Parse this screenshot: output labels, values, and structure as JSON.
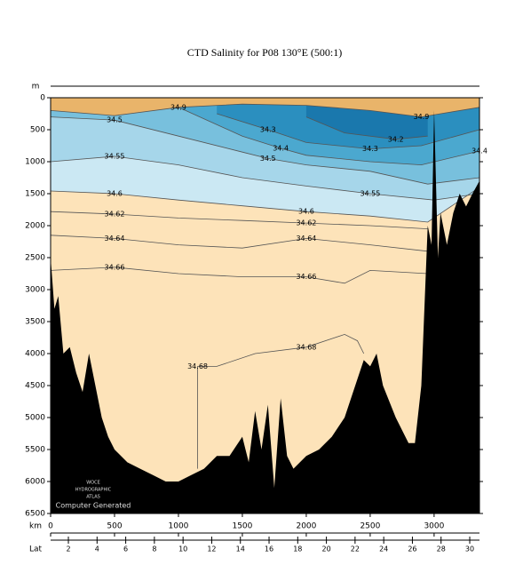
{
  "chart_data": {
    "type": "contour",
    "title": "CTD Salinity for P08 130°E (500:1)",
    "x_label": "km",
    "y_label": "m",
    "lat_label": "Lat",
    "watermark": [
      "WOCE",
      "HYDROGRAPHIC",
      "ATLAS"
    ],
    "note": "Computer Generated",
    "xlim": [
      0,
      3355
    ],
    "xticks": [
      0,
      500,
      1000,
      1500,
      2000,
      2500,
      3000
    ],
    "ylim": [
      6500,
      0
    ],
    "yticks": [
      0,
      500,
      1000,
      1500,
      2000,
      2500,
      3000,
      3500,
      4000,
      4500,
      5000,
      5500,
      6000,
      6500
    ],
    "lat_lim": [
      0.76,
      30.68
    ],
    "lat_ticks": [
      2,
      4,
      6,
      8,
      10,
      12,
      14,
      16,
      18,
      20,
      22,
      24,
      26,
      28,
      30
    ],
    "background": "#fde3b9",
    "contours": [
      {
        "level": 34.6,
        "fill": "#cbe8f3",
        "km": [
          0,
          500,
          1000,
          1500,
          2000,
          2500,
          2950,
          3355
        ],
        "depth": [
          1458,
          1500,
          1600,
          1690,
          1780,
          1850,
          1944,
          1400
        ]
      },
      {
        "level": 34.55,
        "fill": "#a6d6ea",
        "km": [
          0,
          500,
          1000,
          1500,
          2000,
          2500,
          3000,
          3355
        ],
        "depth": [
          1000,
          917,
          1050,
          1250,
          1380,
          1500,
          1600,
          1500
        ]
      },
      {
        "level": 34.5,
        "fill": "#78c0dd",
        "km": [
          0,
          500,
          1000,
          1500,
          1700,
          2000,
          2500,
          2950,
          3355
        ],
        "depth": [
          300,
          350,
          600,
          850,
          950,
          1050,
          1150,
          1350,
          1250
        ]
      },
      {
        "level": 34.4,
        "fill": "#4ba8cf",
        "km": [
          1000,
          1500,
          1800,
          2000,
          2500,
          2900,
          3355
        ],
        "depth": [
          150,
          600,
          790,
          900,
          1000,
          1050,
          833
        ]
      },
      {
        "level": 34.3,
        "fill": "#2b8fbf",
        "km": [
          1300,
          1700,
          2000,
          2500,
          2900,
          3355
        ],
        "depth": [
          250,
          500,
          700,
          800,
          750,
          500
        ]
      },
      {
        "level": 34.2,
        "fill": "#1a78ad",
        "km": [
          2000,
          2300,
          2700,
          2950
        ],
        "depth": [
          300,
          550,
          650,
          600
        ]
      },
      {
        "level": 34.62,
        "km": [
          0,
          500,
          1000,
          1500,
          2000,
          2500,
          2950
        ],
        "depth": [
          1780,
          1820,
          1880,
          1920,
          1960,
          2000,
          2050
        ]
      },
      {
        "level": 34.64,
        "km": [
          0,
          500,
          1000,
          1500,
          2000,
          2500,
          2950
        ],
        "depth": [
          2150,
          2200,
          2300,
          2350,
          2200,
          2300,
          2400
        ]
      },
      {
        "level": 34.66,
        "km": [
          0,
          500,
          1000,
          1500,
          2000,
          2300,
          2500,
          2950
        ],
        "depth": [
          2700,
          2650,
          2750,
          2800,
          2800,
          2900,
          2700,
          2750
        ]
      },
      {
        "level": 34.68,
        "km": [
          1150,
          1150,
          1300,
          1600,
          2000,
          2300,
          2400,
          2450
        ],
        "depth": [
          5800,
          4200,
          4200,
          4000,
          3900,
          3700,
          3800,
          4000
        ]
      },
      {
        "level": 34.9,
        "fill": "#e9b46a",
        "km": [
          0,
          500,
          1000,
          1500,
          2000,
          2500,
          2900,
          3355
        ],
        "depth": [
          200,
          280,
          150,
          100,
          120,
          200,
          300,
          150
        ]
      }
    ],
    "bathymetry": {
      "color": "#000000",
      "km": [
        0,
        30,
        60,
        100,
        150,
        200,
        250,
        300,
        350,
        400,
        450,
        500,
        600,
        700,
        800,
        900,
        1000,
        1100,
        1200,
        1300,
        1400,
        1500,
        1550,
        1600,
        1650,
        1700,
        1750,
        1800,
        1850,
        1900,
        2000,
        2100,
        2200,
        2300,
        2400,
        2450,
        2500,
        2550,
        2600,
        2700,
        2800,
        2850,
        2900,
        2950,
        2980,
        3000,
        3030,
        3050,
        3100,
        3150,
        3200,
        3250,
        3300,
        3355
      ],
      "depth": [
        2500,
        3300,
        3100,
        4000,
        3900,
        4300,
        4600,
        4000,
        4500,
        5000,
        5300,
        5500,
        5700,
        5800,
        5900,
        6000,
        6000,
        5900,
        5800,
        5600,
        5600,
        5300,
        5700,
        4900,
        5500,
        4800,
        6100,
        4700,
        5600,
        5800,
        5600,
        5500,
        5300,
        5000,
        4400,
        4100,
        4200,
        4000,
        4500,
        5000,
        5400,
        5400,
        4500,
        2000,
        2300,
        200,
        2500,
        1800,
        2300,
        1800,
        1500,
        1700,
        1500,
        1300
      ]
    }
  }
}
